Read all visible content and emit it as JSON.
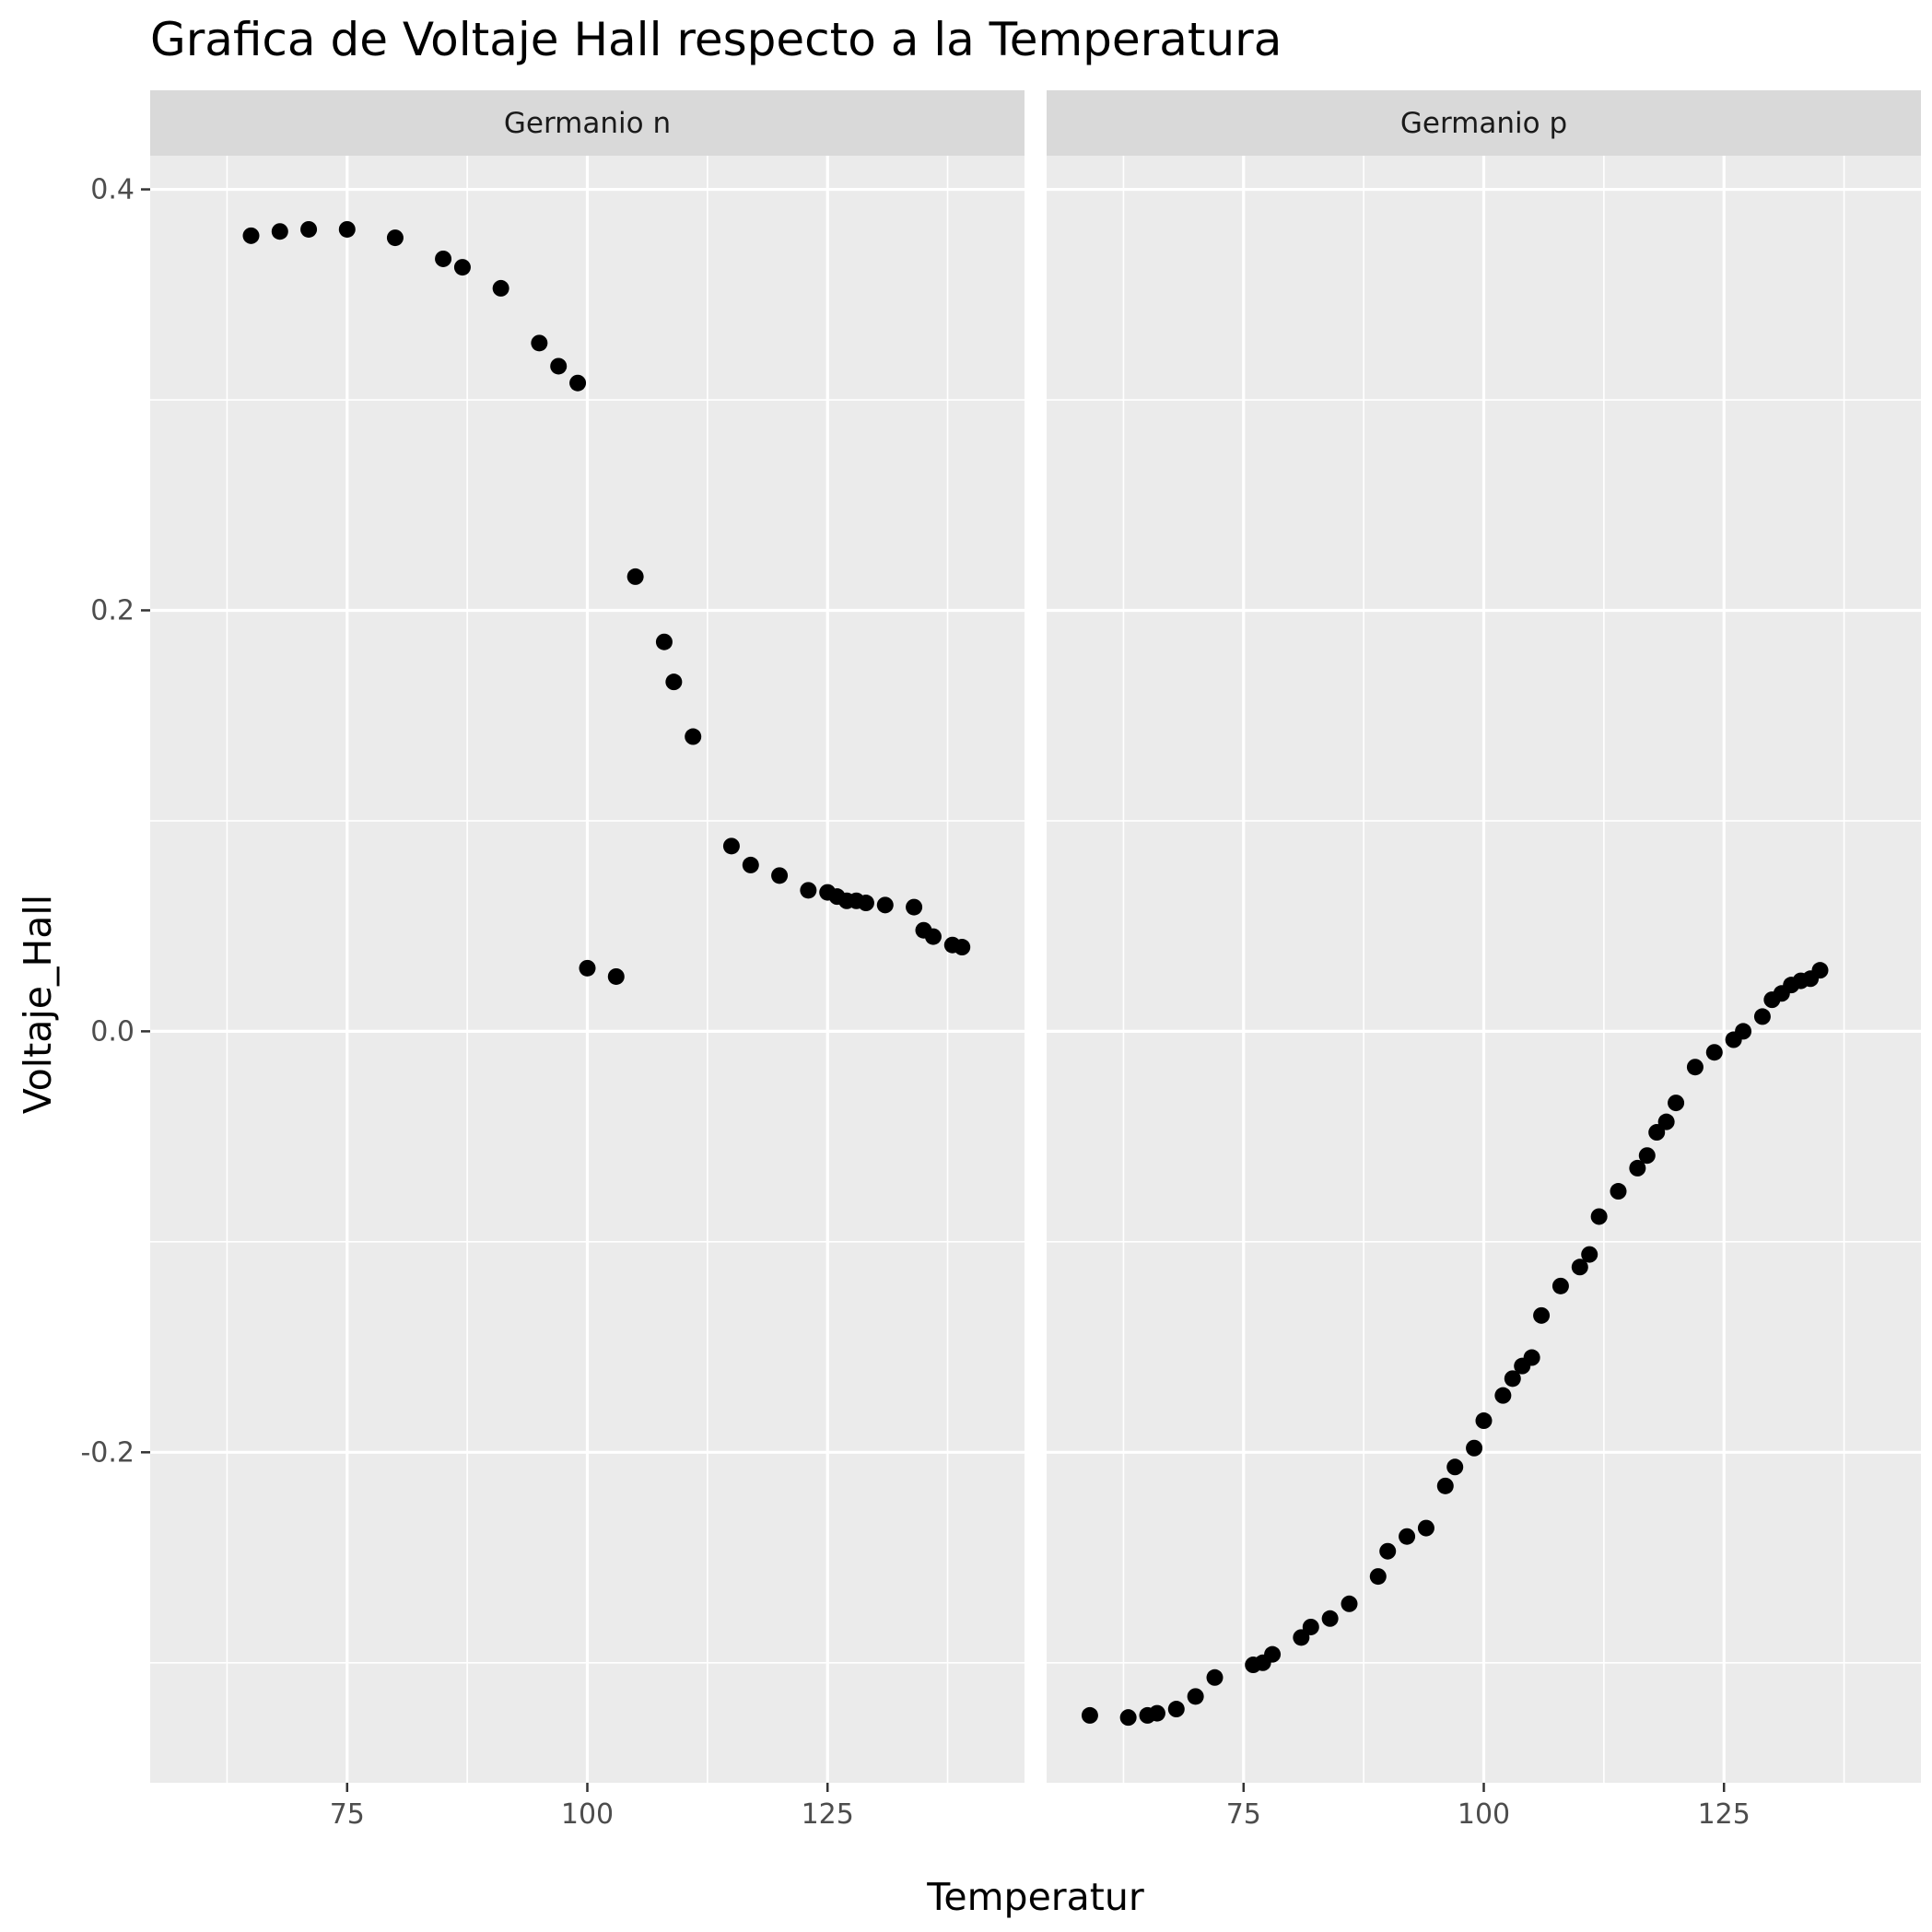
{
  "chart_data": {
    "type": "scatter",
    "title": "Grafica de Voltaje Hall respecto a la Temperatura",
    "xlabel": "Temperatur",
    "ylabel": "Voltaje_Hall",
    "xlim": [
      54.5,
      145.5
    ],
    "ylim": [
      -0.357,
      0.416
    ],
    "x_ticks": [
      75,
      100,
      125
    ],
    "x_tick_labels": [
      "75",
      "100",
      "125"
    ],
    "y_ticks": [
      0.4,
      0.2,
      0.0,
      -0.2
    ],
    "y_tick_labels": [
      "0.4",
      "0.2",
      "0.0",
      "-0.2"
    ],
    "grid": true,
    "panels": [
      {
        "label": "Germanio n",
        "points": [
          [
            65,
            0.378
          ],
          [
            68,
            0.38
          ],
          [
            71,
            0.381
          ],
          [
            75,
            0.381
          ],
          [
            80,
            0.377
          ],
          [
            85,
            0.367
          ],
          [
            87,
            0.363
          ],
          [
            91,
            0.353
          ],
          [
            95,
            0.327
          ],
          [
            97,
            0.316
          ],
          [
            99,
            0.308
          ],
          [
            100,
            0.03
          ],
          [
            103,
            0.026
          ],
          [
            105,
            0.216
          ],
          [
            108,
            0.185
          ],
          [
            109,
            0.166
          ],
          [
            111,
            0.14
          ],
          [
            115,
            0.088
          ],
          [
            117,
            0.079
          ],
          [
            120,
            0.074
          ],
          [
            123,
            0.067
          ],
          [
            125,
            0.066
          ],
          [
            126,
            0.064
          ],
          [
            127,
            0.062
          ],
          [
            128,
            0.062
          ],
          [
            129,
            0.061
          ],
          [
            131,
            0.06
          ],
          [
            134,
            0.059
          ],
          [
            135,
            0.048
          ],
          [
            136,
            0.045
          ],
          [
            138,
            0.041
          ],
          [
            139,
            0.04
          ]
        ]
      },
      {
        "label": "Germanio p",
        "points": [
          [
            59,
            -0.325
          ],
          [
            63,
            -0.326
          ],
          [
            65,
            -0.325
          ],
          [
            66,
            -0.324
          ],
          [
            68,
            -0.322
          ],
          [
            70,
            -0.316
          ],
          [
            72,
            -0.307
          ],
          [
            76,
            -0.301
          ],
          [
            77,
            -0.3
          ],
          [
            78,
            -0.296
          ],
          [
            81,
            -0.288
          ],
          [
            82,
            -0.283
          ],
          [
            84,
            -0.279
          ],
          [
            86,
            -0.272
          ],
          [
            89,
            -0.259
          ],
          [
            90,
            -0.247
          ],
          [
            92,
            -0.24
          ],
          [
            94,
            -0.236
          ],
          [
            96,
            -0.216
          ],
          [
            97,
            -0.207
          ],
          [
            99,
            -0.198
          ],
          [
            100,
            -0.185
          ],
          [
            102,
            -0.173
          ],
          [
            103,
            -0.165
          ],
          [
            104,
            -0.159
          ],
          [
            105,
            -0.155
          ],
          [
            106,
            -0.135
          ],
          [
            108,
            -0.121
          ],
          [
            110,
            -0.112
          ],
          [
            111,
            -0.106
          ],
          [
            112,
            -0.088
          ],
          [
            114,
            -0.076
          ],
          [
            116,
            -0.065
          ],
          [
            117,
            -0.059
          ],
          [
            118,
            -0.048
          ],
          [
            119,
            -0.043
          ],
          [
            120,
            -0.034
          ],
          [
            122,
            -0.017
          ],
          [
            124,
            -0.01
          ],
          [
            126,
            -0.004
          ],
          [
            127,
            0.0
          ],
          [
            129,
            0.007
          ],
          [
            130,
            0.015
          ],
          [
            131,
            0.018
          ],
          [
            132,
            0.022
          ],
          [
            133,
            0.024
          ],
          [
            134,
            0.025
          ],
          [
            135,
            0.029
          ]
        ]
      }
    ]
  }
}
